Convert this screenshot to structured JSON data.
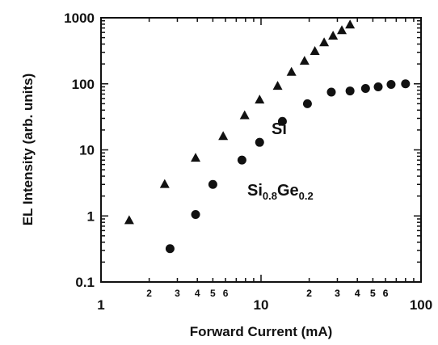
{
  "chart_data": {
    "type": "scatter",
    "title": "",
    "xlabel": "Forward Current (mA)",
    "ylabel": "EL Intensity (arb. units)",
    "xscale": "log",
    "yscale": "log",
    "xlim": [
      1,
      100
    ],
    "ylim": [
      0.1,
      1000
    ],
    "grid": false,
    "x_ticks_major": [
      "1",
      "10",
      "100"
    ],
    "x_ticks_minor": [
      "2",
      "3",
      "4",
      "5",
      "6",
      "2",
      "3",
      "4",
      "5",
      "6",
      "2",
      "3",
      "4",
      "5",
      "6"
    ],
    "y_ticks": [
      "0.1",
      "1",
      "10",
      "100",
      "1000"
    ],
    "series": [
      {
        "name": "Si",
        "marker": "triangle",
        "color": "#111111",
        "x": [
          1.5,
          2.5,
          3.9,
          5.8,
          7.9,
          9.8,
          12.7,
          15.5,
          18.7,
          21.7,
          24.8,
          28.2,
          32.0,
          36.0
        ],
        "y": [
          0.85,
          3.0,
          7.5,
          16,
          33,
          57,
          92,
          150,
          220,
          310,
          420,
          530,
          640,
          780
        ]
      },
      {
        "name_parts": [
          "Si",
          "0.8",
          "Ge",
          "0.2"
        ],
        "marker": "circle",
        "color": "#111111",
        "x": [
          2.7,
          3.9,
          5.0,
          7.6,
          9.8,
          13.6,
          19.5,
          27.5,
          36.0,
          45.0,
          54.0,
          65.0,
          80.0
        ],
        "y": [
          0.32,
          1.05,
          3.0,
          7.0,
          13,
          27,
          50,
          75,
          78,
          85,
          90,
          98,
          100
        ]
      }
    ]
  }
}
